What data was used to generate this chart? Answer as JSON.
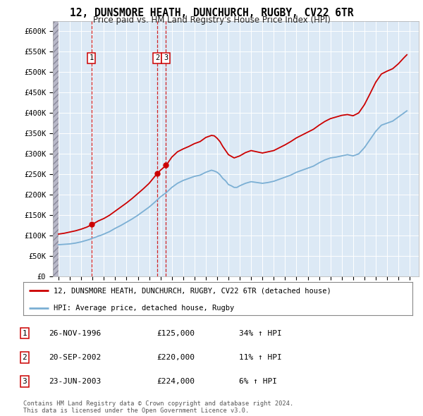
{
  "title": "12, DUNSMORE HEATH, DUNCHURCH, RUGBY, CV22 6TR",
  "subtitle": "Price paid vs. HM Land Registry's House Price Index (HPI)",
  "legend_label_red": "12, DUNSMORE HEATH, DUNCHURCH, RUGBY, CV22 6TR (detached house)",
  "legend_label_blue": "HPI: Average price, detached house, Rugby",
  "footer1": "Contains HM Land Registry data © Crown copyright and database right 2024.",
  "footer2": "This data is licensed under the Open Government Licence v3.0.",
  "transactions": [
    {
      "num": 1,
      "date": "26-NOV-1996",
      "price": "£125,000",
      "hpi_pct": "34%",
      "x_year": 1996.9
    },
    {
      "num": 2,
      "date": "20-SEP-2002",
      "price": "£220,000",
      "hpi_pct": "11%",
      "x_year": 2002.72
    },
    {
      "num": 3,
      "date": "23-JUN-2003",
      "price": "£224,000",
      "hpi_pct": "6%",
      "x_year": 2003.47
    }
  ],
  "color_red": "#cc0000",
  "color_blue": "#7bafd4",
  "color_plot_bg": "#dce9f5",
  "color_hatch_bg": "#c8c8d0",
  "ylim": [
    0,
    625000
  ],
  "xlim_start": 1993.5,
  "xlim_end": 2025.8,
  "hatch_end": 1994.0,
  "hpi_line": {
    "years": [
      1994,
      1994.25,
      1994.5,
      1994.75,
      1995,
      1995.25,
      1995.5,
      1995.75,
      1996,
      1996.25,
      1996.5,
      1996.75,
      1997,
      1997.25,
      1997.5,
      1997.75,
      1998,
      1998.25,
      1998.5,
      1998.75,
      1999,
      1999.25,
      1999.5,
      1999.75,
      2000,
      2000.25,
      2000.5,
      2000.75,
      2001,
      2001.25,
      2001.5,
      2001.75,
      2002,
      2002.25,
      2002.5,
      2002.75,
      2003,
      2003.25,
      2003.5,
      2003.75,
      2004,
      2004.25,
      2004.5,
      2004.75,
      2005,
      2005.25,
      2005.5,
      2005.75,
      2006,
      2006.25,
      2006.5,
      2006.75,
      2007,
      2007.25,
      2007.5,
      2007.75,
      2008,
      2008.25,
      2008.5,
      2008.75,
      2009,
      2009.25,
      2009.5,
      2009.75,
      2010,
      2010.25,
      2010.5,
      2010.75,
      2011,
      2011.25,
      2011.5,
      2011.75,
      2012,
      2012.25,
      2012.5,
      2012.75,
      2013,
      2013.25,
      2013.5,
      2013.75,
      2014,
      2014.25,
      2014.5,
      2014.75,
      2015,
      2015.25,
      2015.5,
      2015.75,
      2016,
      2016.25,
      2016.5,
      2016.75,
      2017,
      2017.25,
      2017.5,
      2017.75,
      2018,
      2018.25,
      2018.5,
      2018.75,
      2019,
      2019.25,
      2019.5,
      2019.75,
      2020,
      2020.25,
      2020.5,
      2020.75,
      2021,
      2021.25,
      2021.5,
      2021.75,
      2022,
      2022.25,
      2022.5,
      2022.75,
      2023,
      2023.25,
      2023.5,
      2023.75,
      2024,
      2024.25,
      2024.5,
      2024.75
    ],
    "values": [
      78000,
      78500,
      79000,
      79500,
      80000,
      81000,
      82000,
      83500,
      85000,
      87000,
      89000,
      91000,
      94000,
      96000,
      99000,
      101000,
      104000,
      107000,
      110000,
      114000,
      118000,
      121500,
      125000,
      129000,
      133000,
      137000,
      141000,
      145500,
      150000,
      155000,
      160000,
      165000,
      170000,
      176000,
      182000,
      188500,
      195000,
      200000,
      205000,
      211500,
      218000,
      223000,
      228000,
      231500,
      235000,
      237500,
      240000,
      242500,
      245000,
      246500,
      248000,
      251500,
      255000,
      257500,
      260000,
      258000,
      255000,
      249000,
      240000,
      234000,
      225000,
      222000,
      218000,
      218000,
      222000,
      225000,
      228000,
      230000,
      232000,
      231000,
      230000,
      229000,
      228000,
      229000,
      230000,
      231500,
      233000,
      235500,
      238000,
      240500,
      243000,
      245500,
      248000,
      251500,
      255000,
      257500,
      260000,
      262500,
      265000,
      267500,
      270000,
      274000,
      278000,
      281500,
      285000,
      287500,
      290000,
      291000,
      292000,
      293500,
      295000,
      296500,
      298000,
      296500,
      295000,
      297500,
      300000,
      307500,
      315000,
      325000,
      335000,
      345000,
      355000,
      362500,
      370000,
      372500,
      375000,
      377500,
      380000,
      385000,
      390000,
      395000,
      400000,
      405000
    ]
  },
  "price_line": {
    "years": [
      1994,
      1994.25,
      1994.5,
      1994.75,
      1995,
      1995.25,
      1995.5,
      1995.75,
      1996,
      1996.25,
      1996.5,
      1996.75,
      1997,
      1997.25,
      1997.5,
      1997.75,
      1998,
      1998.25,
      1998.5,
      1998.75,
      1999,
      1999.25,
      1999.5,
      1999.75,
      2000,
      2000.25,
      2000.5,
      2000.75,
      2001,
      2001.25,
      2001.5,
      2001.75,
      2002,
      2002.25,
      2002.5,
      2002.75,
      2003,
      2003.25,
      2003.5,
      2003.75,
      2004,
      2004.25,
      2004.5,
      2004.75,
      2005,
      2005.25,
      2005.5,
      2005.75,
      2006,
      2006.25,
      2006.5,
      2006.75,
      2007,
      2007.25,
      2007.5,
      2007.75,
      2008,
      2008.25,
      2008.5,
      2008.75,
      2009,
      2009.25,
      2009.5,
      2009.75,
      2010,
      2010.25,
      2010.5,
      2010.75,
      2011,
      2011.25,
      2011.5,
      2011.75,
      2012,
      2012.25,
      2012.5,
      2012.75,
      2013,
      2013.25,
      2013.5,
      2013.75,
      2014,
      2014.25,
      2014.5,
      2014.75,
      2015,
      2015.25,
      2015.5,
      2015.75,
      2016,
      2016.25,
      2016.5,
      2016.75,
      2017,
      2017.25,
      2017.5,
      2017.75,
      2018,
      2018.25,
      2018.5,
      2018.75,
      2019,
      2019.25,
      2019.5,
      2019.75,
      2020,
      2020.25,
      2020.5,
      2020.75,
      2021,
      2021.25,
      2021.5,
      2021.75,
      2022,
      2022.25,
      2022.5,
      2022.75,
      2023,
      2023.25,
      2023.5,
      2023.75,
      2024,
      2024.25,
      2024.5,
      2024.75
    ],
    "values": [
      104000,
      105000,
      106000,
      107500,
      109000,
      110500,
      112000,
      114000,
      116000,
      118500,
      121000,
      124500,
      128000,
      132000,
      136000,
      139000,
      142000,
      146000,
      150000,
      155000,
      160000,
      165000,
      170000,
      175000,
      180000,
      185500,
      191000,
      197000,
      203000,
      209000,
      215000,
      221500,
      228000,
      236500,
      245000,
      252500,
      260000,
      266000,
      272000,
      282000,
      292000,
      298500,
      305000,
      308500,
      312000,
      315000,
      318000,
      321500,
      325000,
      327500,
      330000,
      335000,
      340000,
      342500,
      345000,
      344000,
      338000,
      330000,
      318000,
      308000,
      298000,
      294000,
      290000,
      292500,
      295000,
      299000,
      303000,
      305500,
      308000,
      306500,
      305000,
      303500,
      302000,
      303500,
      305000,
      306500,
      308000,
      311500,
      315000,
      318500,
      322000,
      326000,
      330000,
      334500,
      339000,
      342500,
      346000,
      349500,
      353000,
      356500,
      360000,
      365000,
      370000,
      374500,
      379000,
      382500,
      386000,
      388000,
      390000,
      392000,
      394000,
      395000,
      396000,
      394500,
      393000,
      396500,
      400000,
      410000,
      420000,
      433500,
      447000,
      461000,
      475000,
      485000,
      495000,
      498500,
      502000,
      505000,
      508000,
      514000,
      520000,
      527500,
      535000,
      542000
    ]
  }
}
